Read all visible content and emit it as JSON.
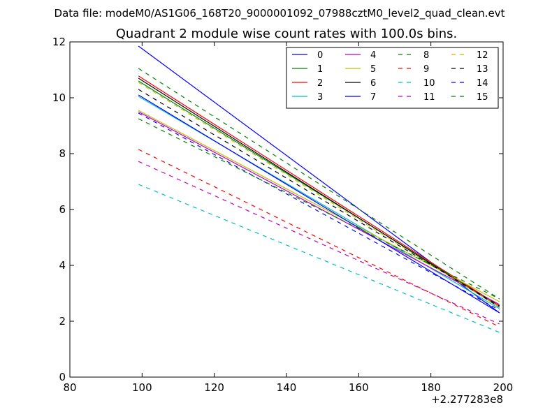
{
  "chart_data": {
    "type": "line",
    "suptitle": "Data file: modeM0/AS1G06_168T20_9000001092_07988cztM0_level2_quad_clean.evt",
    "title": "Quadrant 2 module wise count rates with 100.0s bins.",
    "xlabel": "",
    "ylabel": "",
    "x_offset_label": "+2.277283e8",
    "xlim": [
      80,
      200
    ],
    "ylim": [
      0,
      12
    ],
    "xticks": [
      "80",
      "100",
      "120",
      "140",
      "160",
      "180",
      "200"
    ],
    "yticks": [
      "0",
      "2",
      "4",
      "6",
      "8",
      "10",
      "12"
    ],
    "grid": false,
    "legend_position": "top-right",
    "legend_columns": 4,
    "series": [
      {
        "name": "0",
        "color": "#0000ff",
        "style": "solid",
        "x": [
          99,
          199
        ],
        "y": [
          11.85,
          2.3
        ]
      },
      {
        "name": "1",
        "color": "#008000",
        "style": "solid",
        "x": [
          99,
          199
        ],
        "y": [
          10.6,
          2.55
        ]
      },
      {
        "name": "2",
        "color": "#ff0000",
        "style": "solid",
        "x": [
          99,
          199
        ],
        "y": [
          10.78,
          2.55
        ]
      },
      {
        "name": "3",
        "color": "#00bfbf",
        "style": "solid",
        "x": [
          99,
          199
        ],
        "y": [
          10.05,
          2.45
        ]
      },
      {
        "name": "4",
        "color": "#bf00bf",
        "style": "solid",
        "x": [
          99,
          199
        ],
        "y": [
          9.5,
          2.6
        ]
      },
      {
        "name": "5",
        "color": "#bfbf00",
        "style": "solid",
        "x": [
          99,
          199
        ],
        "y": [
          9.55,
          2.7
        ]
      },
      {
        "name": "6",
        "color": "#000000",
        "style": "solid",
        "x": [
          99,
          199
        ],
        "y": [
          10.7,
          2.5
        ]
      },
      {
        "name": "7",
        "color": "#0000ff",
        "style": "solid",
        "x": [
          99,
          199
        ],
        "y": [
          10.1,
          2.3
        ]
      },
      {
        "name": "8",
        "color": "#008000",
        "style": "dashed",
        "x": [
          99,
          199
        ],
        "y": [
          11.05,
          2.8
        ]
      },
      {
        "name": "9",
        "color": "#ff0000",
        "style": "dashed",
        "x": [
          99,
          199
        ],
        "y": [
          8.15,
          1.8
        ]
      },
      {
        "name": "10",
        "color": "#00bfbf",
        "style": "dashed",
        "x": [
          99,
          199
        ],
        "y": [
          6.9,
          1.6
        ]
      },
      {
        "name": "11",
        "color": "#bf00bf",
        "style": "dashed",
        "x": [
          99,
          199
        ],
        "y": [
          7.72,
          1.9
        ]
      },
      {
        "name": "12",
        "color": "#bfbf00",
        "style": "dashed",
        "x": [
          99,
          199
        ],
        "y": [
          10.55,
          2.5
        ]
      },
      {
        "name": "13",
        "color": "#000000",
        "style": "dashed",
        "x": [
          99,
          199
        ],
        "y": [
          10.3,
          2.55
        ]
      },
      {
        "name": "14",
        "color": "#0000ff",
        "style": "dashed",
        "x": [
          99,
          199
        ],
        "y": [
          9.45,
          2.4
        ]
      },
      {
        "name": "15",
        "color": "#008000",
        "style": "dashed",
        "x": [
          99,
          199
        ],
        "y": [
          9.25,
          2.8
        ]
      }
    ]
  }
}
